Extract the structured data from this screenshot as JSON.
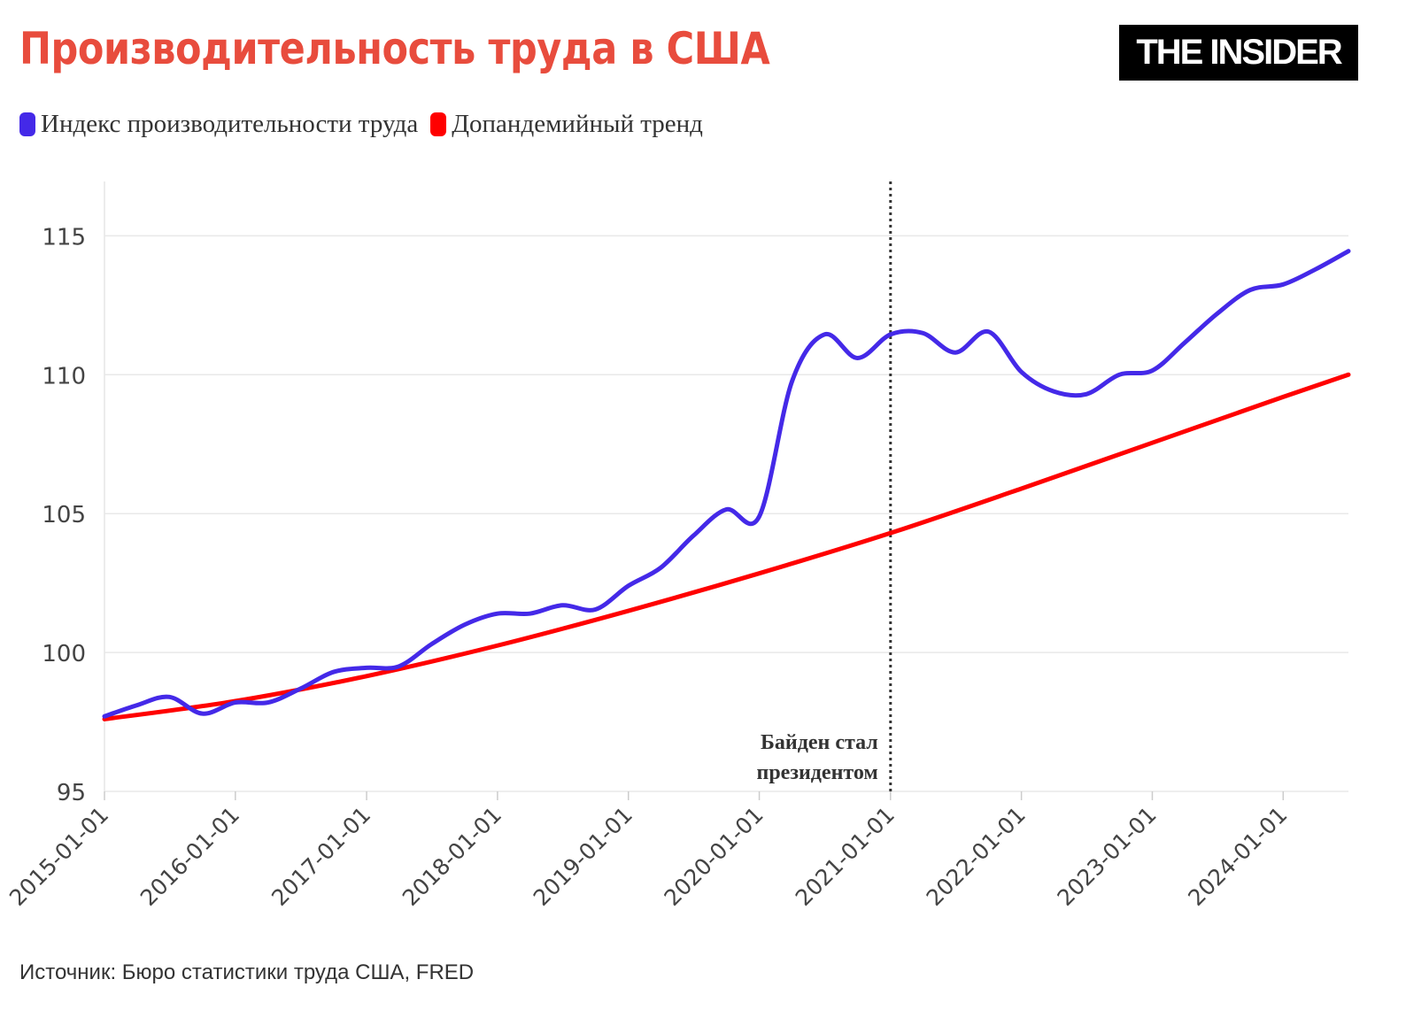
{
  "title": "Производительность труда в США",
  "logo_text": "THE INSIDER",
  "source": "Источник: Бюро статистики труда США, FRED",
  "chart_data": {
    "type": "line",
    "title": "Производительность труда в США",
    "xlabel": "",
    "ylabel": "",
    "ylim": [
      95,
      117
    ],
    "xlim": [
      "2015-01-01",
      "2024-07-01"
    ],
    "grid": "horizontal",
    "legend_position": "top-left",
    "y_ticks": [
      "95",
      "100",
      "105",
      "110",
      "115"
    ],
    "x_ticks": [
      "2015-01-01",
      "2016-01-01",
      "2017-01-01",
      "2018-01-01",
      "2019-01-01",
      "2020-01-01",
      "2021-01-01",
      "2022-01-01",
      "2023-01-01",
      "2024-01-01"
    ],
    "series": [
      {
        "name": "Индекс производительности труда",
        "color": "#4429e8",
        "x": [
          "2015-01-01",
          "2015-04-01",
          "2015-07-01",
          "2015-10-01",
          "2016-01-01",
          "2016-04-01",
          "2016-07-01",
          "2016-10-01",
          "2017-01-01",
          "2017-04-01",
          "2017-07-01",
          "2017-10-01",
          "2018-01-01",
          "2018-04-01",
          "2018-07-01",
          "2018-10-01",
          "2019-01-01",
          "2019-04-01",
          "2019-07-01",
          "2019-10-01",
          "2020-01-01",
          "2020-04-01",
          "2020-07-01",
          "2020-10-01",
          "2021-01-01",
          "2021-04-01",
          "2021-07-01",
          "2021-10-01",
          "2022-01-01",
          "2022-04-01",
          "2022-07-01",
          "2022-10-01",
          "2023-01-01",
          "2023-04-01",
          "2023-07-01",
          "2023-10-01",
          "2024-01-01",
          "2024-04-01",
          "2024-07-01"
        ],
        "values": [
          97.7,
          98.1,
          98.4,
          97.8,
          98.2,
          98.2,
          98.7,
          99.3,
          99.45,
          99.5,
          100.3,
          101.0,
          101.4,
          101.4,
          101.7,
          101.55,
          102.4,
          103.05,
          104.2,
          105.15,
          104.9,
          109.75,
          111.45,
          110.6,
          111.45,
          111.5,
          110.8,
          111.55,
          110.1,
          109.4,
          109.3,
          110.0,
          110.15,
          111.15,
          112.2,
          113.05,
          113.25,
          113.8,
          114.45
        ]
      },
      {
        "name": "Допандемийный тренд",
        "color": "#ff0000",
        "x": [
          "2015-01-01",
          "2016-01-01",
          "2017-01-01",
          "2018-01-01",
          "2019-01-01",
          "2020-01-01",
          "2021-01-01",
          "2022-01-01",
          "2023-01-01",
          "2024-01-01",
          "2024-07-01"
        ],
        "values": [
          97.6,
          98.25,
          99.15,
          100.25,
          101.5,
          102.85,
          104.3,
          105.9,
          107.55,
          109.2,
          110.0
        ]
      }
    ],
    "annotations": [
      {
        "x": "2021-01-01",
        "type": "vertical-dotted-line",
        "label_lines": [
          "Байден стал",
          "президентом"
        ]
      }
    ]
  }
}
